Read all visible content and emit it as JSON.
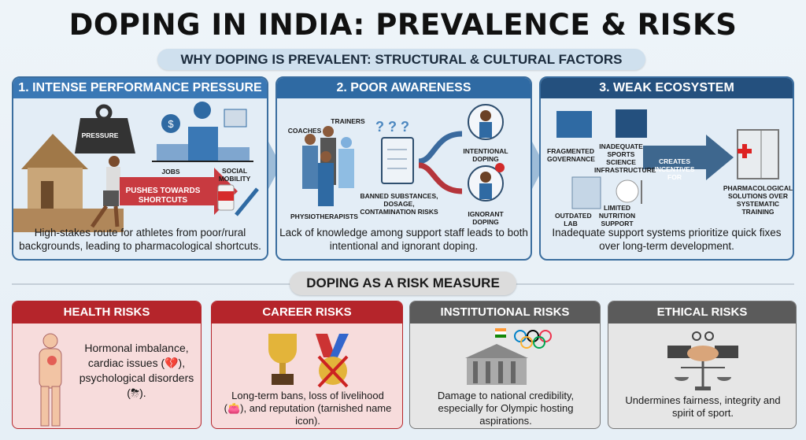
{
  "title": "DOPING IN INDIA: PREVALENCE & RISKS",
  "subtitle": "WHY DOPING IS PREVALENT: STRUCTURAL & CULTURAL FACTORS",
  "colors": {
    "panel1": "#3a78b5",
    "panel2": "#2f6aa3",
    "panel3": "#24507e",
    "risk_red": "#b5252b",
    "risk_gray": "#5b5b5b"
  },
  "panels": [
    {
      "header": "1. INTENSE PERFORMANCE PRESSURE",
      "labels": {
        "weight": "PRESSURE",
        "jobs": "JOBS",
        "mobility": "SOCIAL MOBILITY",
        "arrow": "PUSHES TOWARDS SHORTCUTS"
      },
      "caption": "High-stakes route for athletes from poor/rural backgrounds, leading to pharmacological shortcuts."
    },
    {
      "header": "2. POOR AWARENESS",
      "labels": {
        "coaches": "COACHES",
        "trainers": "TRAINERS",
        "physio": "PHYSIOTHERAPISTS",
        "banned": "BANNED SUBSTANCES, DOSAGE, CONTAMINATION RISKS",
        "intentional": "INTENTIONAL DOPING",
        "ignorant": "IGNORANT DOPING"
      },
      "caption": "Lack of knowledge among support staff leads to both intentional and ignorant doping."
    },
    {
      "header": "3. WEAK ECOSYSTEM",
      "labels": {
        "governance": "FRAGMENTED GOVERNANCE",
        "infra": "INADEQUATE SPORTS SCIENCE INFRASTRUCTURE",
        "lab": "OUTDATED LAB",
        "nutrition": "LIMITED NUTRITION SUPPORT",
        "arrow": "CREATES INCENTIVES FOR",
        "result": "PHARMACOLOGICAL SOLUTIONS OVER SYSTEMATIC TRAINING"
      },
      "caption": "Inadequate support systems prioritize quick fixes over long-term development."
    }
  ],
  "risk_section": "DOPING AS A RISK MEASURE",
  "risks": [
    {
      "header": "HEALTH RISKS",
      "text": "Hormonal imbalance, cardiac issues (💔), psychological disorders (⛈)."
    },
    {
      "header": "CAREER RISKS",
      "text": "Long-term bans, loss of livelihood (👛), and reputation (tarnished name icon)."
    },
    {
      "header": "INSTITUTIONAL RISKS",
      "text": "Damage to national credibility, especially for Olympic hosting aspirations."
    },
    {
      "header": "ETHICAL RISKS",
      "text": "Undermines fairness, integrity and spirit of sport."
    }
  ]
}
